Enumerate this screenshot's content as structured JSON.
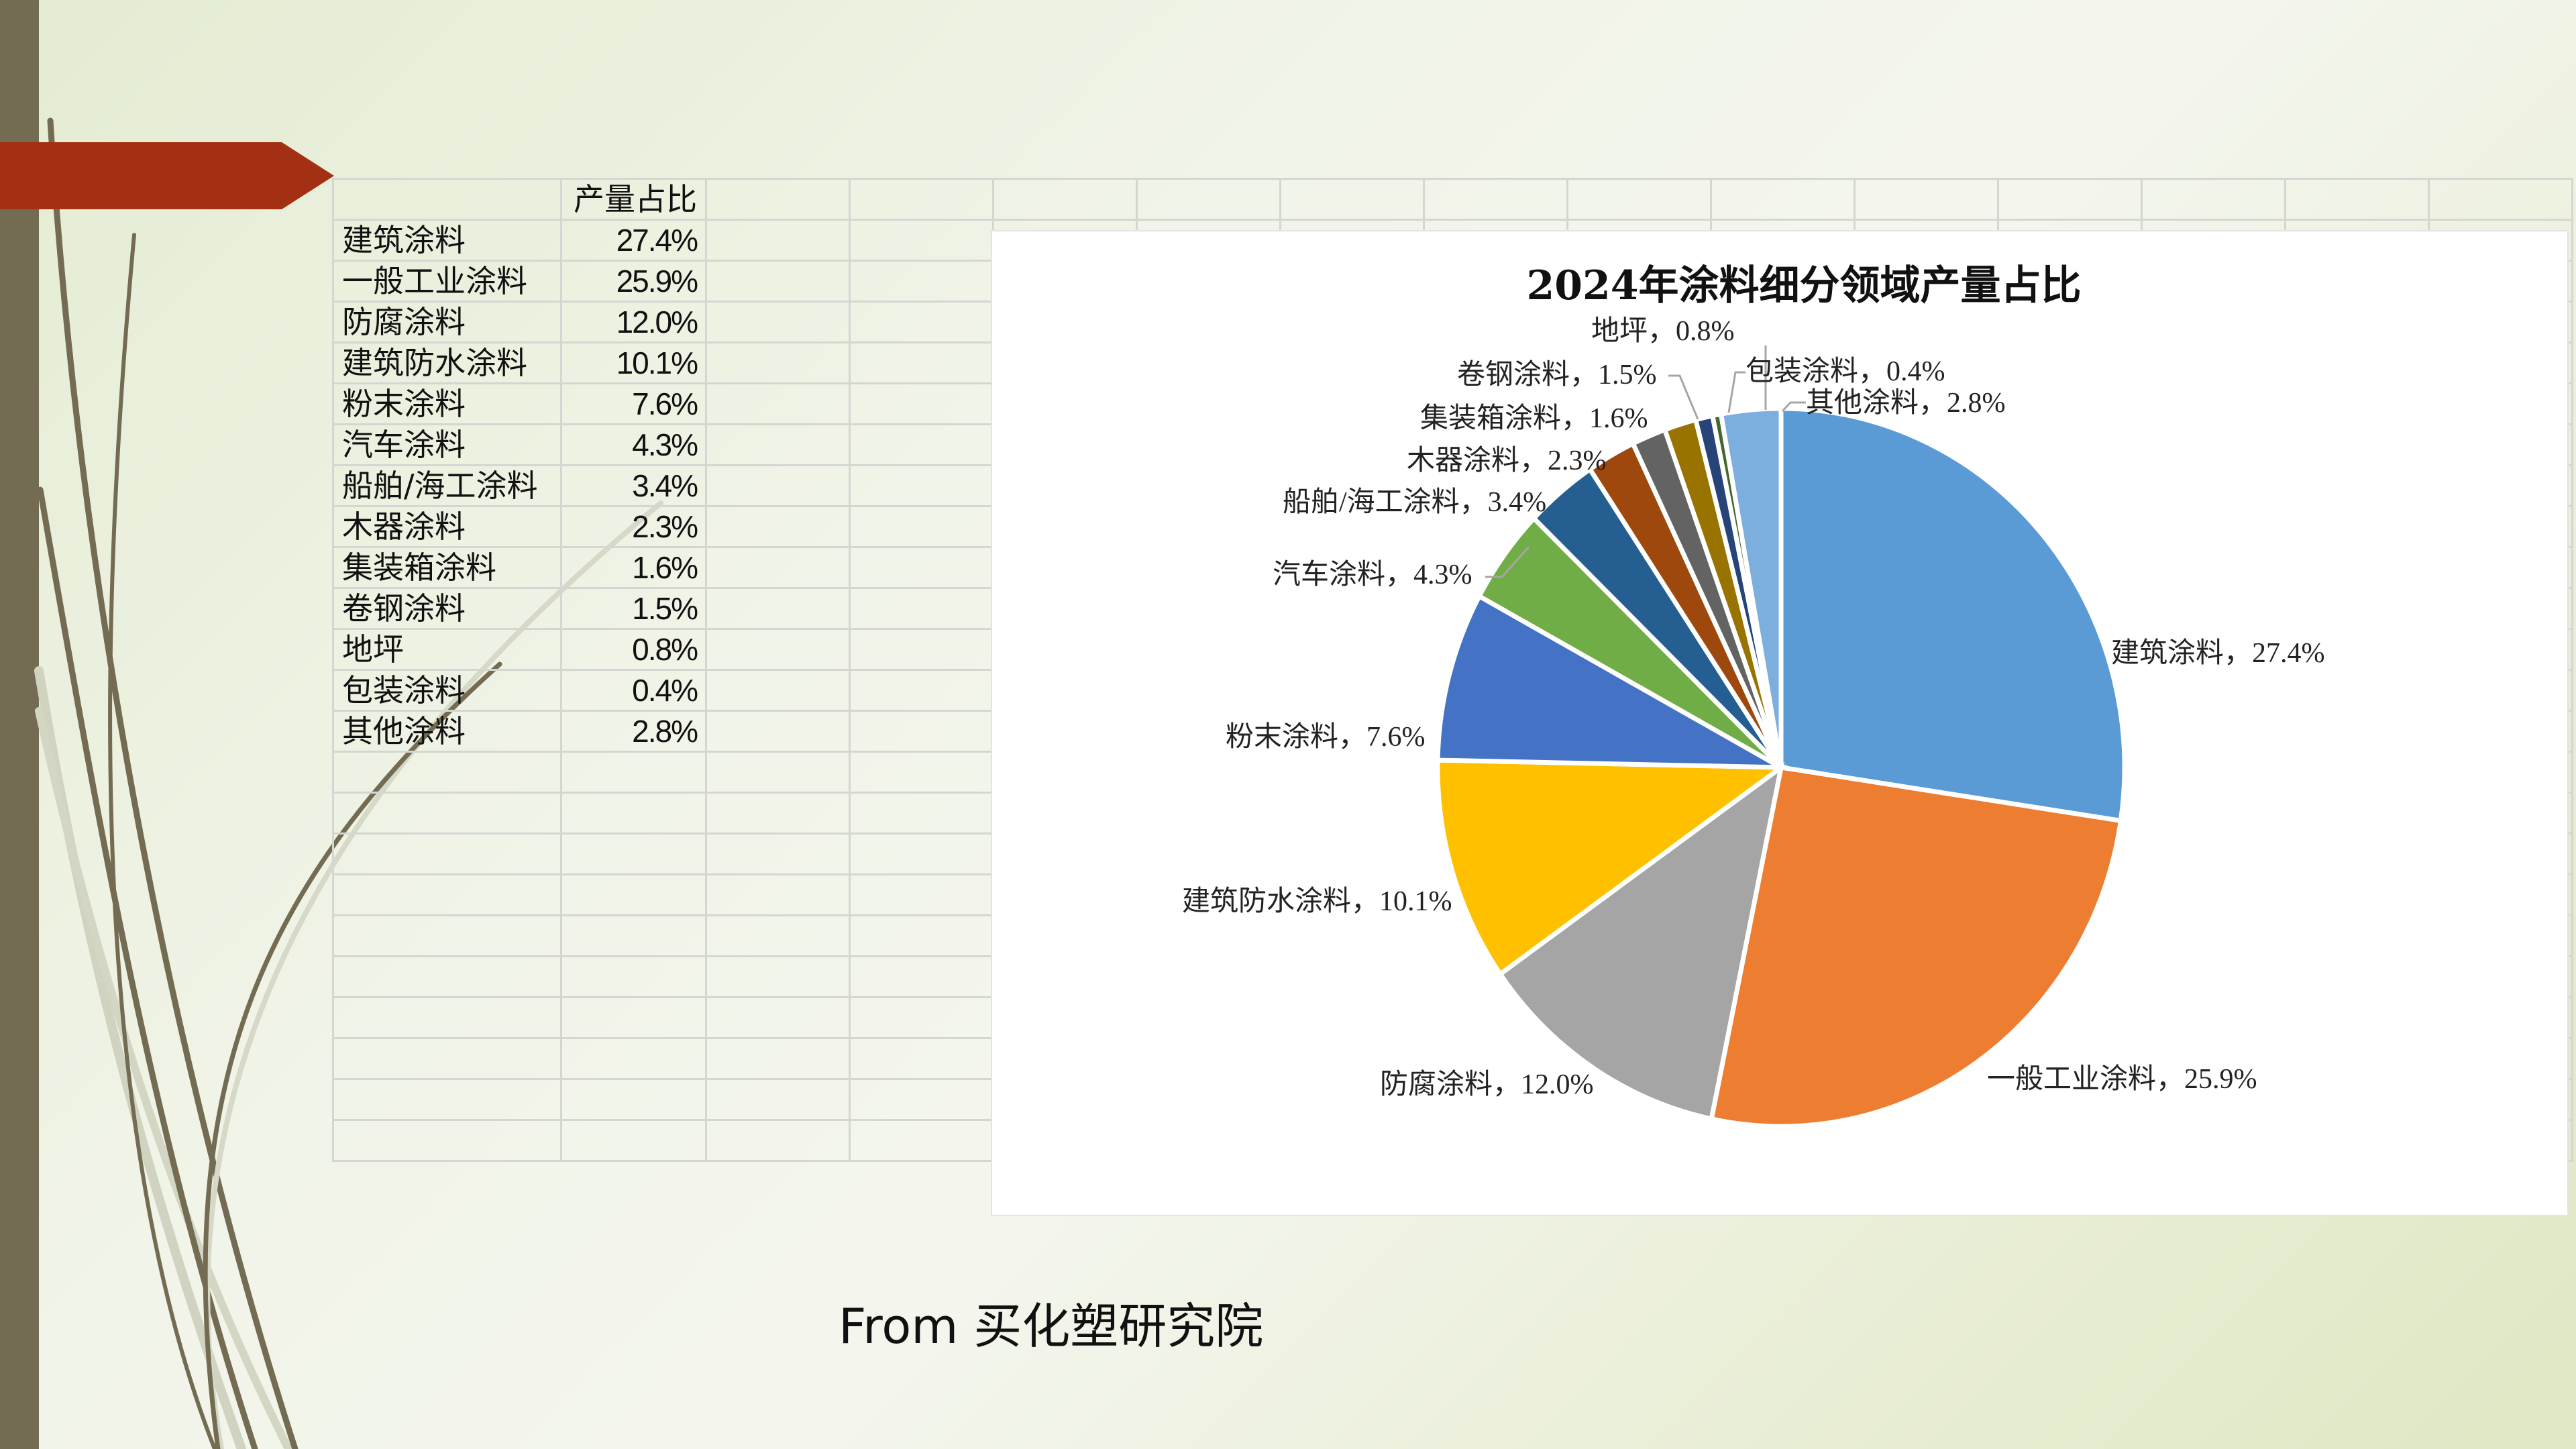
{
  "slide": {
    "source_text": "From 买化塑研究院",
    "colors": {
      "left_bar": "#736b52",
      "banner": "#a33012",
      "background": "#eef3e2"
    }
  },
  "sheet": {
    "header": [
      "",
      "产量占比"
    ],
    "rows": [
      {
        "label": "建筑涂料",
        "value": "27.4%"
      },
      {
        "label": "一般工业涂料",
        "value": "25.9%"
      },
      {
        "label": "防腐涂料",
        "value": "12.0%"
      },
      {
        "label": "建筑防水涂料",
        "value": "10.1%"
      },
      {
        "label": "粉末涂料",
        "value": "7.6%"
      },
      {
        "label": "汽车涂料",
        "value": "4.3%"
      },
      {
        "label": "船舶/海工涂料",
        "value": "3.4%"
      },
      {
        "label": "木器涂料",
        "value": "2.3%"
      },
      {
        "label": "集装箱涂料",
        "value": "1.6%"
      },
      {
        "label": "卷钢涂料",
        "value": "1.5%"
      },
      {
        "label": "地坪",
        "value": "0.8%"
      },
      {
        "label": "包装涂料",
        "value": "0.4%"
      },
      {
        "label": "其他涂料",
        "value": "2.8%"
      }
    ]
  },
  "chart_data": {
    "type": "pie",
    "title": "2024年涂料细分领域产量占比",
    "categories": [
      "建筑涂料",
      "一般工业涂料",
      "防腐涂料",
      "建筑防水涂料",
      "粉末涂料",
      "汽车涂料",
      "船舶/海工涂料",
      "木器涂料",
      "集装箱涂料",
      "卷钢涂料",
      "地坪",
      "包装涂料",
      "其他涂料"
    ],
    "values": [
      27.4,
      25.9,
      12.0,
      10.1,
      7.6,
      4.3,
      3.4,
      2.3,
      1.6,
      1.5,
      0.8,
      0.4,
      2.8
    ],
    "unit": "%",
    "colors": [
      "#5b9bd5",
      "#ed7d31",
      "#a5a5a5",
      "#ffc000",
      "#4472c4",
      "#70ad47",
      "#255e91",
      "#9e480e",
      "#636363",
      "#997300",
      "#264478",
      "#43682b",
      "#7cafdd"
    ],
    "data_labels": [
      "建筑涂料，27.4%",
      "一般工业涂料，25.9%",
      "防腐涂料，12.0%",
      "建筑防水涂料，10.1%",
      "粉末涂料，7.6%",
      "汽车涂料，4.3%",
      "船舶/海工涂料，3.4%",
      "木器涂料，2.3%",
      "集装箱涂料，1.6%",
      "卷钢涂料，1.5%",
      "地坪，0.8%",
      "包装涂料，0.4%",
      "其他涂料，2.8%"
    ],
    "start_angle_deg": 0,
    "direction": "clockwise",
    "legend": "none",
    "label_position": "outside_end_with_leader_lines"
  }
}
